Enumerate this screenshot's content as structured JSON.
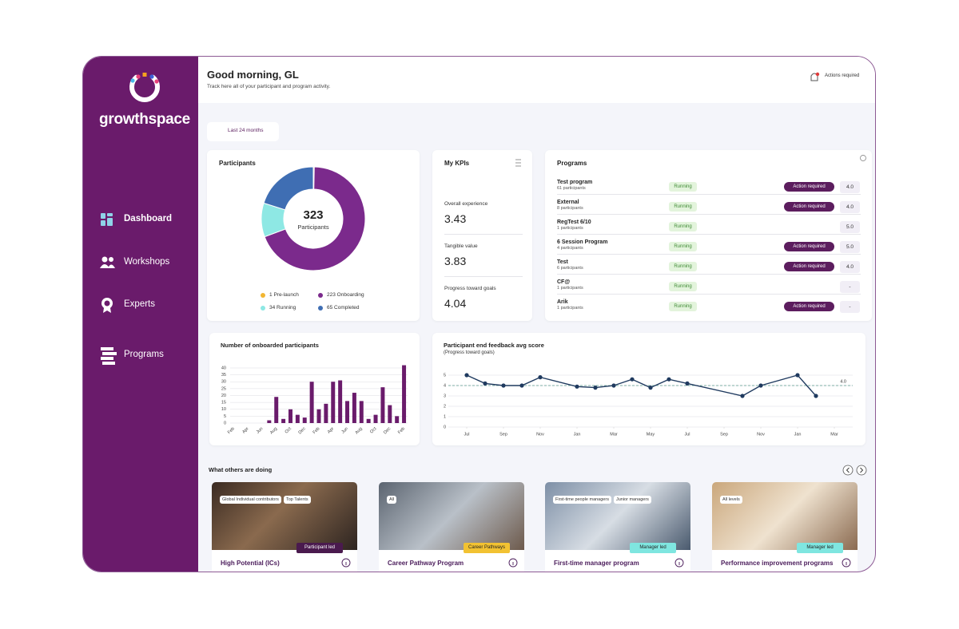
{
  "sidebar": {
    "brand": "growthspace",
    "nav": [
      "Dashboard",
      "Workshops",
      "Experts",
      "Programs"
    ]
  },
  "header": {
    "greeting": "Good morning, GL",
    "subtitle": "Track here all of your participant and program activity.",
    "actions": "Actions required"
  },
  "filter": "Last 24 months",
  "participants": {
    "chart_data": {
      "type": "donut",
      "title": "Participants",
      "total": 323,
      "total_label": "Participants",
      "categories": [
        "Pre-launch",
        "Onboarding",
        "Running",
        "Completed"
      ],
      "values": [
        1,
        223,
        34,
        65
      ],
      "colors": [
        "#f2b632",
        "#7b2a8c",
        "#8ee8e4",
        "#3f6eb3"
      ]
    }
  },
  "kpis": {
    "title": "My KPIs",
    "items": [
      {
        "label": "Overall experience",
        "value": 3.43
      },
      {
        "label": "Tangible value",
        "value": 3.83
      },
      {
        "label": "Progress toward goals",
        "value": 4.04
      }
    ]
  },
  "programs": {
    "title": "Programs",
    "rows": [
      {
        "name": "Test program",
        "participants": "61 participants",
        "status": "Running",
        "action": "Action required",
        "score": "4.0"
      },
      {
        "name": "External",
        "participants": "8 participants",
        "status": "Running",
        "action": "Action required",
        "score": "4.0"
      },
      {
        "name": "RegTest 6/10",
        "participants": "1 participants",
        "status": "Running",
        "score": "5.0"
      },
      {
        "name": "6 Session Program",
        "participants": "4 participants",
        "status": "Running",
        "action": "Action required",
        "score": "5.0"
      },
      {
        "name": "Test",
        "participants": "6 participants",
        "status": "Running",
        "action": "Action required",
        "score": "4.0"
      },
      {
        "name": "CF@",
        "participants": "1 participants",
        "status": "Running",
        "score": "-"
      },
      {
        "name": "Arik",
        "participants": "1 participants",
        "status": "Running",
        "action": "Action required",
        "score": "-"
      }
    ]
  },
  "onboarded": {
    "chart_data": {
      "type": "bar",
      "title": "Number of onboarded participants",
      "categories": [
        "Feb",
        null,
        "Apr",
        null,
        "Jun",
        null,
        "Aug",
        null,
        "Oct",
        null,
        "Dec",
        null,
        "Feb",
        null,
        "Apr",
        null,
        "Jun",
        null,
        "Aug",
        null,
        "Oct",
        null,
        "Dec",
        null,
        "Feb"
      ],
      "values": [
        0,
        0,
        0,
        0,
        0,
        2,
        19,
        3,
        10,
        6,
        4,
        30,
        10,
        14,
        30,
        31,
        16,
        22,
        16,
        3,
        6,
        26,
        13,
        5,
        42
      ],
      "color": "#6a1b6b",
      "ylim": [
        0,
        45
      ],
      "yticks": [
        0,
        5,
        10,
        15,
        20,
        25,
        30,
        35,
        40
      ],
      "grid": true
    }
  },
  "feedback": {
    "chart_data": {
      "type": "line",
      "title": "Participant end feedback avg score",
      "subtitle": "(Progress toward goals)",
      "x": [
        0,
        1,
        2,
        3,
        4,
        6,
        7,
        8,
        9,
        10,
        11,
        12,
        15,
        16,
        18,
        19
      ],
      "values": [
        5.0,
        4.2,
        4.0,
        4.0,
        4.8,
        3.9,
        3.8,
        4.0,
        4.6,
        3.8,
        4.6,
        4.2,
        3.0,
        4.0,
        5.0,
        3.0
      ],
      "color": "#1f3a5f",
      "xlim": [
        -1,
        21
      ],
      "xticks": [
        {
          "value": 0,
          "label": "Jul"
        },
        {
          "value": 2,
          "label": "Sep"
        },
        {
          "value": 4,
          "label": "Nov"
        },
        {
          "value": 6,
          "label": "Jan"
        },
        {
          "value": 8,
          "label": "Mar"
        },
        {
          "value": 10,
          "label": "May"
        },
        {
          "value": 12,
          "label": "Jul"
        },
        {
          "value": 14,
          "label": "Sep"
        },
        {
          "value": 16,
          "label": "Nov"
        },
        {
          "value": 18,
          "label": "Jan"
        },
        {
          "value": 20,
          "label": "Mar"
        }
      ],
      "ylim": [
        0,
        5
      ],
      "yticks": [
        0,
        1,
        2,
        3,
        4,
        5
      ],
      "grid": true,
      "reference": {
        "value": 4,
        "label": "4.0"
      }
    }
  },
  "others": {
    "title": "What others are doing",
    "cards": [
      {
        "tags": [
          "Global Individual contributors",
          "Top Talents"
        ],
        "badge": "Participant led",
        "title": "High Potential (ICs)"
      },
      {
        "tags": [
          "All"
        ],
        "badge": "Career Pathways",
        "title": "Career Pathway Program"
      },
      {
        "tags": [
          "First-time people managers",
          "Junior managers"
        ],
        "badge": "Manager led",
        "title": "First-time manager program"
      },
      {
        "tags": [
          "All levels"
        ],
        "badge": "Manager led",
        "title": "Performance improvement programs"
      }
    ]
  }
}
